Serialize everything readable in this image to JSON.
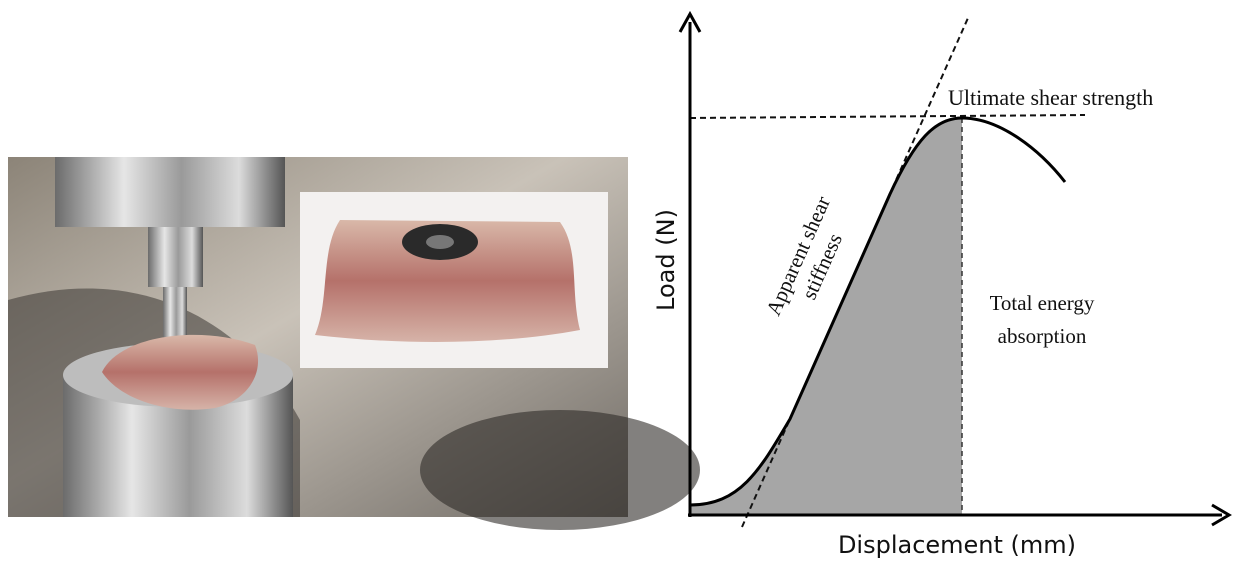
{
  "diagram": {
    "y_axis_label": "Load (N)",
    "x_axis_label": "Displacement (mm)",
    "annotations": {
      "ultimate": "Ultimate shear strength",
      "stiffness": [
        "Apparent shear",
        "stiffness"
      ],
      "energy": [
        "Total energy",
        "absorption"
      ]
    }
  }
}
